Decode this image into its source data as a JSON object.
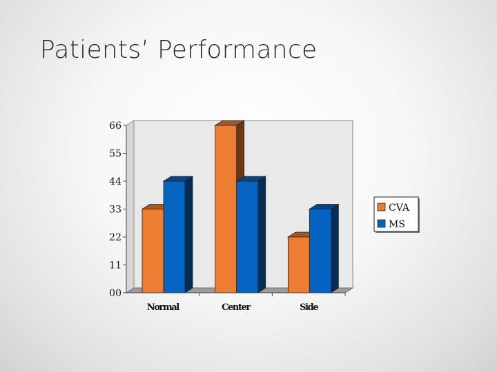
{
  "slide": {
    "title": "Patients’ Performance"
  },
  "chart_data": {
    "type": "bar",
    "title": "",
    "xlabel": "",
    "ylabel": "",
    "categories": [
      "Normal",
      "Center",
      "Side"
    ],
    "series": [
      {
        "name": "CVA",
        "values": [
          33,
          66,
          22
        ],
        "color": "#ED7D31"
      },
      {
        "name": "MS",
        "values": [
          44,
          44,
          33
        ],
        "color": "#0563C1"
      }
    ],
    "ylim": [
      0,
      66
    ],
    "yticks": [
      "00",
      "11",
      "22",
      "33",
      "44",
      "55",
      "66"
    ],
    "grid": false,
    "legend": "right"
  }
}
